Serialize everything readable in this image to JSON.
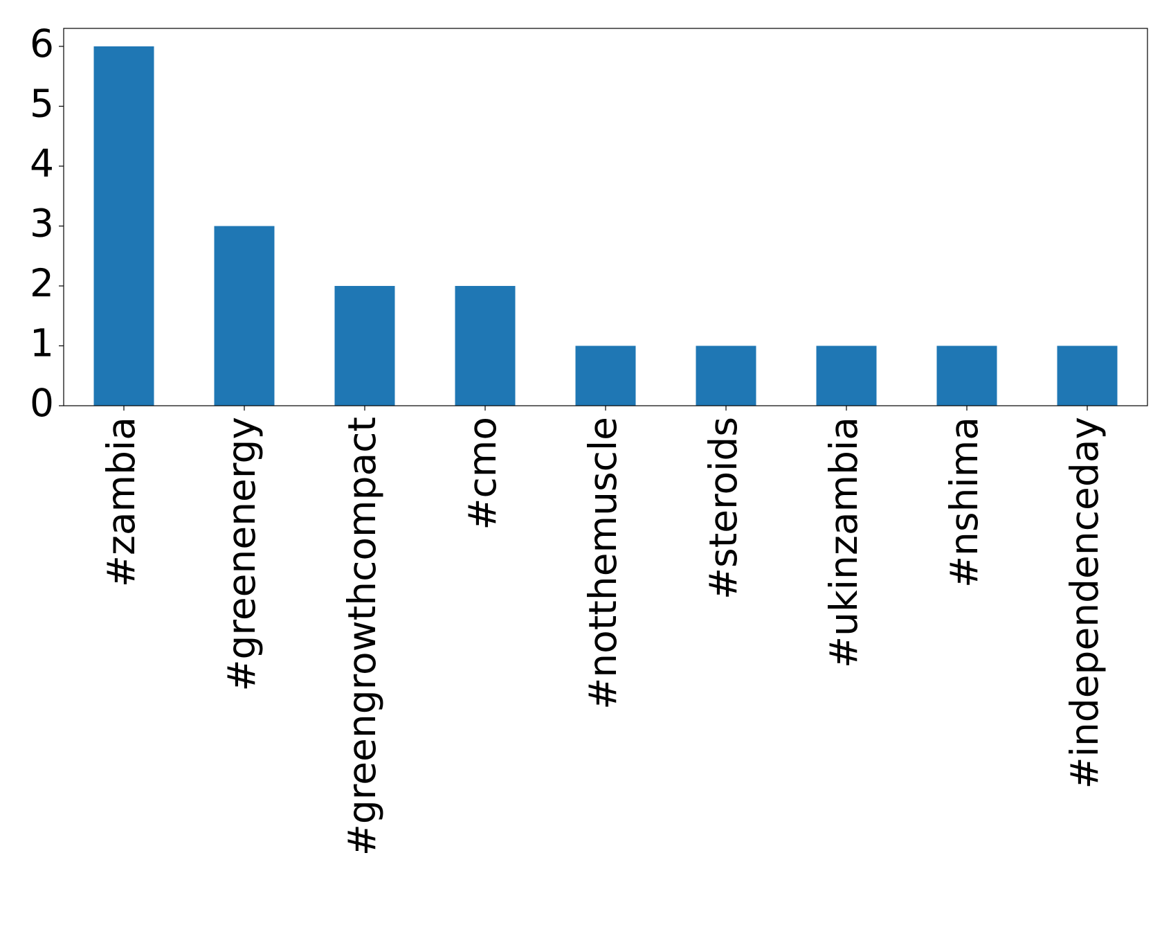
{
  "chart_data": {
    "type": "bar",
    "categories": [
      "#zambia",
      "#greenenergy",
      "#greengrowthcompact",
      "#cmo",
      "#notthemuscle",
      "#steroids",
      "#ukinzambia",
      "#nshima",
      "#independenceday"
    ],
    "values": [
      6,
      3,
      2,
      2,
      1,
      1,
      1,
      1,
      1
    ],
    "color": "#1f77b4",
    "ylim": [
      0,
      6.3
    ],
    "yticks": [
      0,
      1,
      2,
      3,
      4,
      5,
      6
    ],
    "grid": false
  }
}
